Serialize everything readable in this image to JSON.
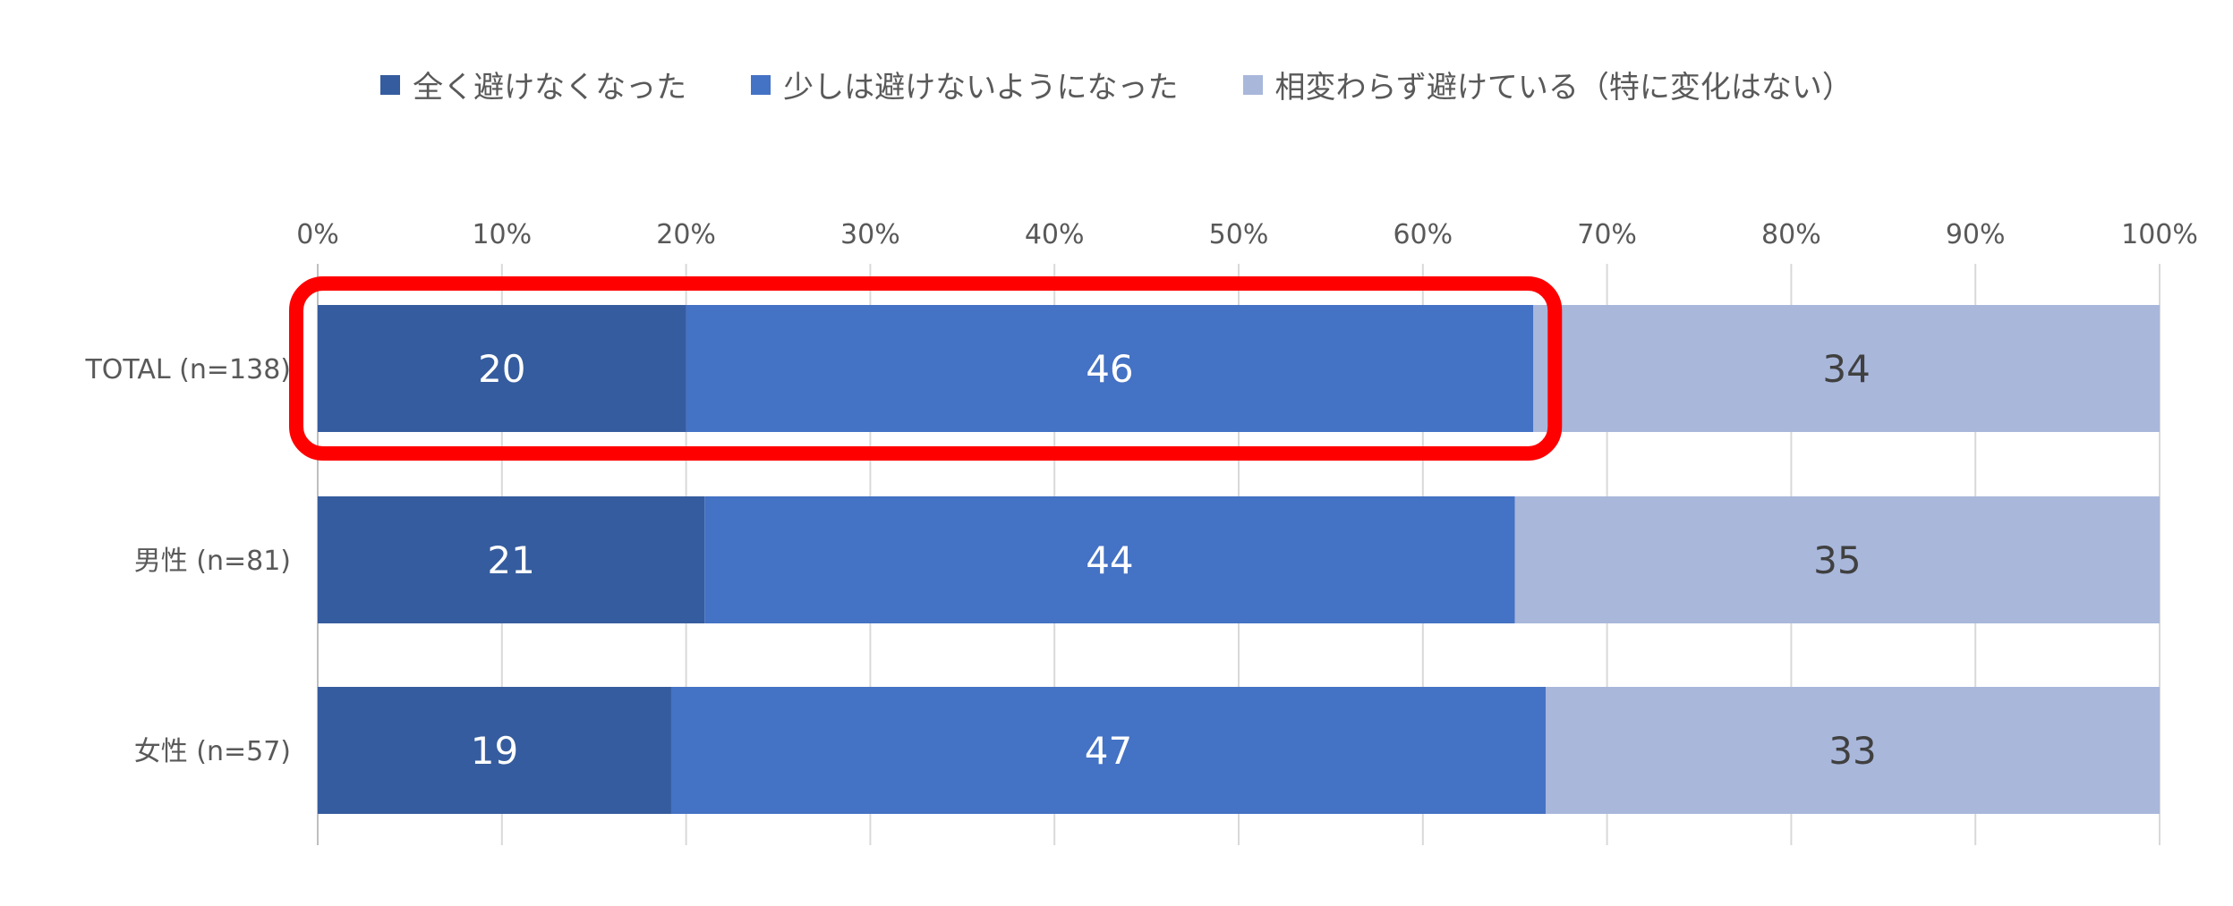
{
  "chart_data": {
    "type": "bar",
    "orientation": "horizontal",
    "stacked": true,
    "percent_stacked": true,
    "categories": [
      "TOTAL (n=138)",
      "男性 (n=81)",
      "女性 (n=57)"
    ],
    "series": [
      {
        "name": "全く避けなくなった",
        "values": [
          20,
          21,
          19
        ],
        "color": "#355C9E",
        "label_color": "#ffffff"
      },
      {
        "name": "少しは避けないようになった",
        "values": [
          46,
          44,
          47
        ],
        "color": "#4472C4",
        "label_color": "#ffffff"
      },
      {
        "name": "相変わらず避けている（特に変化はない）",
        "values": [
          34,
          35,
          33
        ],
        "color": "#A9B7DB",
        "label_color": "#404040"
      }
    ],
    "xlim": [
      0,
      100
    ],
    "xticks": [
      "0%",
      "10%",
      "20%",
      "30%",
      "40%",
      "50%",
      "60%",
      "70%",
      "80%",
      "90%",
      "100%"
    ],
    "grid": true,
    "legend_position": "top",
    "highlight": {
      "category": "TOTAL (n=138)",
      "series": [
        "全く避けなくなった",
        "少しは避けないようになった"
      ],
      "color": "#FF0000"
    }
  }
}
